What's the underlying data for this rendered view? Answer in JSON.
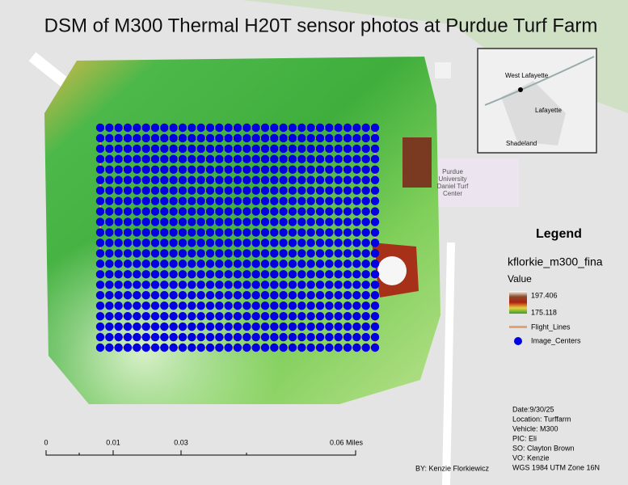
{
  "header": {
    "title": "DSM of M300 Thermal H20T sensor photos at Purdue Turf Farm"
  },
  "map_labels": {
    "facility": [
      "Purdue",
      "University",
      "Daniel Turf",
      "Center"
    ]
  },
  "inset": {
    "labels": [
      "West Lafayette",
      "Lafayette",
      "Shadeland"
    ]
  },
  "legend": {
    "title": "Legend",
    "layer": "kflorkie_m300_fina",
    "value_heading": "Value",
    "high": 197.406,
    "low": 175.118,
    "items": [
      "Flight_Lines",
      "Image_Centers"
    ]
  },
  "scale_bar": {
    "labels": [
      "0",
      "0.01",
      "0.03",
      "0.06 Miles"
    ]
  },
  "author": "BY: Kenzie Florkiewicz",
  "info": [
    "Date:9/30/25",
    "Location: Turffarm",
    "Vehicle: M300",
    "PIC: Eli",
    "SO: Clayton Brown",
    "VO: Kenzie",
    "WGS 1984 UTM Zone 16N"
  ]
}
